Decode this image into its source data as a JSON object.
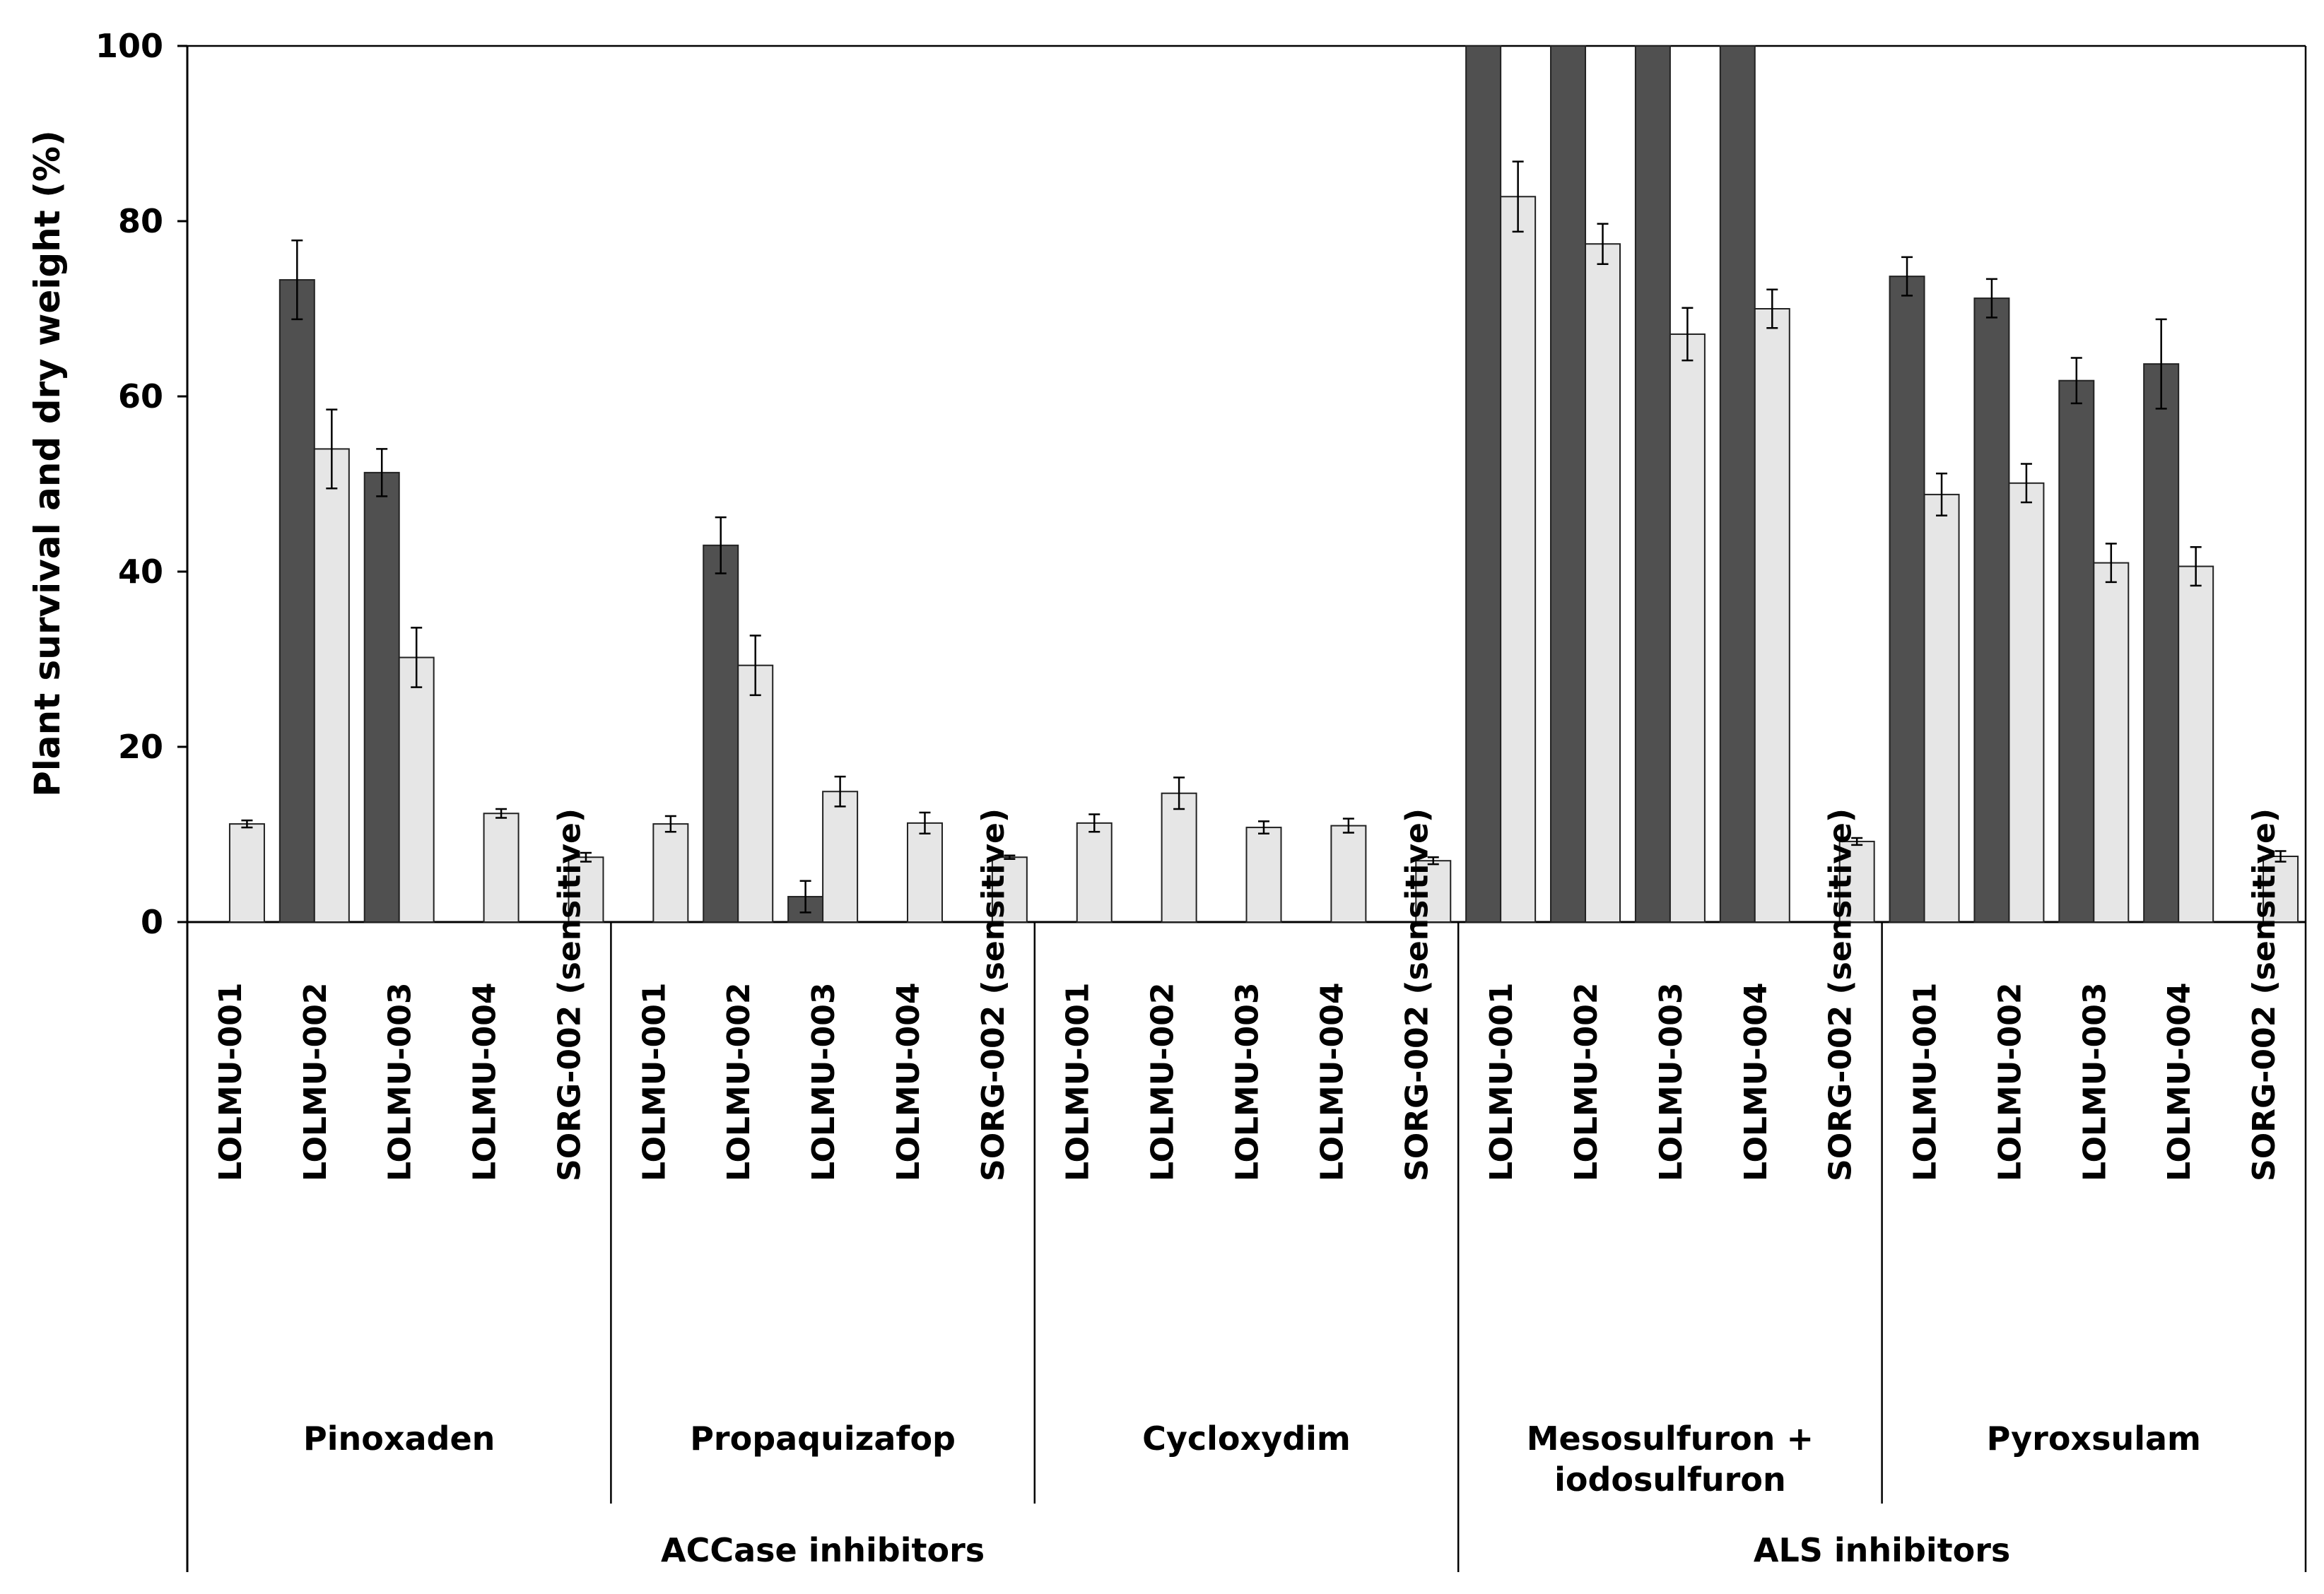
{
  "chart_data": {
    "type": "bar",
    "ylabel": "Plant survival and dry weight (%)",
    "ylim": [
      0,
      100
    ],
    "yticks": [
      0,
      20,
      40,
      60,
      80,
      100
    ],
    "series_styles": [
      {
        "name": "Plant survival",
        "color": "#505050"
      },
      {
        "name": "Dry weight",
        "color": "#e6e6e6"
      }
    ],
    "groups": [
      {
        "name": "Pinoxaden",
        "name_lines": [
          "Pinoxaden"
        ],
        "class": "ACCase inhibitors",
        "categories": [
          "LOLMU-001",
          "LOLMU-002",
          "LOLMU-003",
          "LOLMU-004",
          "SORG-002 (sensitive)"
        ],
        "survival": [
          null,
          73.3,
          51.3,
          null,
          null
        ],
        "survival_err": [
          null,
          4.5,
          2.7,
          null,
          null
        ],
        "dry_weight": [
          11.2,
          54.0,
          30.2,
          12.4,
          7.4
        ],
        "dry_weight_err": [
          0.4,
          4.5,
          3.4,
          0.5,
          0.5
        ]
      },
      {
        "name": "Propaquizafop",
        "name_lines": [
          "Propaquizafop"
        ],
        "class": "ACCase inhibitors",
        "categories": [
          "LOLMU-001",
          "LOLMU-002",
          "LOLMU-003",
          "LOLMU-004",
          "SORG-002 (sensitive)"
        ],
        "survival": [
          null,
          43.0,
          2.9,
          null,
          null
        ],
        "survival_err": [
          null,
          3.2,
          1.8,
          null,
          null
        ],
        "dry_weight": [
          11.2,
          29.3,
          14.9,
          11.3,
          7.4
        ],
        "dry_weight_err": [
          0.9,
          3.4,
          1.7,
          1.2,
          0.2
        ]
      },
      {
        "name": "Cycloxydim",
        "name_lines": [
          "Cycloxydim"
        ],
        "class": "ACCase inhibitors",
        "categories": [
          "LOLMU-001",
          "LOLMU-002",
          "LOLMU-003",
          "LOLMU-004",
          "SORG-002 (sensitive)"
        ],
        "survival": [
          null,
          null,
          null,
          null,
          null
        ],
        "survival_err": [
          null,
          null,
          null,
          null,
          null
        ],
        "dry_weight": [
          11.3,
          14.7,
          10.8,
          11.0,
          7.0
        ],
        "dry_weight_err": [
          1.0,
          1.8,
          0.7,
          0.8,
          0.4
        ]
      },
      {
        "name": "Mesosulfuron + iodosulfuron",
        "name_lines": [
          "Mesosulfuron +",
          "iodosulfuron"
        ],
        "class": "ALS inhibitors",
        "categories": [
          "LOLMU-001",
          "LOLMU-002",
          "LOLMU-003",
          "LOLMU-004",
          "SORG-002 (sensitive)"
        ],
        "survival": [
          100,
          100,
          100,
          100,
          null
        ],
        "survival_err": [
          null,
          null,
          null,
          null,
          null
        ],
        "dry_weight": [
          82.8,
          77.4,
          67.1,
          70.0,
          9.2
        ],
        "dry_weight_err": [
          4.0,
          2.3,
          3.0,
          2.2,
          0.4
        ]
      },
      {
        "name": "Pyroxsulam",
        "name_lines": [
          "Pyroxsulam"
        ],
        "class": "ALS inhibitors",
        "categories": [
          "LOLMU-001",
          "LOLMU-002",
          "LOLMU-003",
          "LOLMU-004",
          "SORG-002 (sensitive)"
        ],
        "survival": [
          73.7,
          71.2,
          61.8,
          63.7,
          null
        ],
        "survival_err": [
          2.2,
          2.2,
          2.6,
          5.1,
          null
        ],
        "dry_weight": [
          48.8,
          50.1,
          41.0,
          40.6,
          7.5
        ],
        "dry_weight_err": [
          2.4,
          2.2,
          2.2,
          2.2,
          0.6
        ]
      }
    ],
    "classes": [
      {
        "name": "ACCase inhibitors",
        "group_span": [
          0,
          2
        ]
      },
      {
        "name": "ALS inhibitors",
        "group_span": [
          3,
          4
        ]
      }
    ]
  }
}
